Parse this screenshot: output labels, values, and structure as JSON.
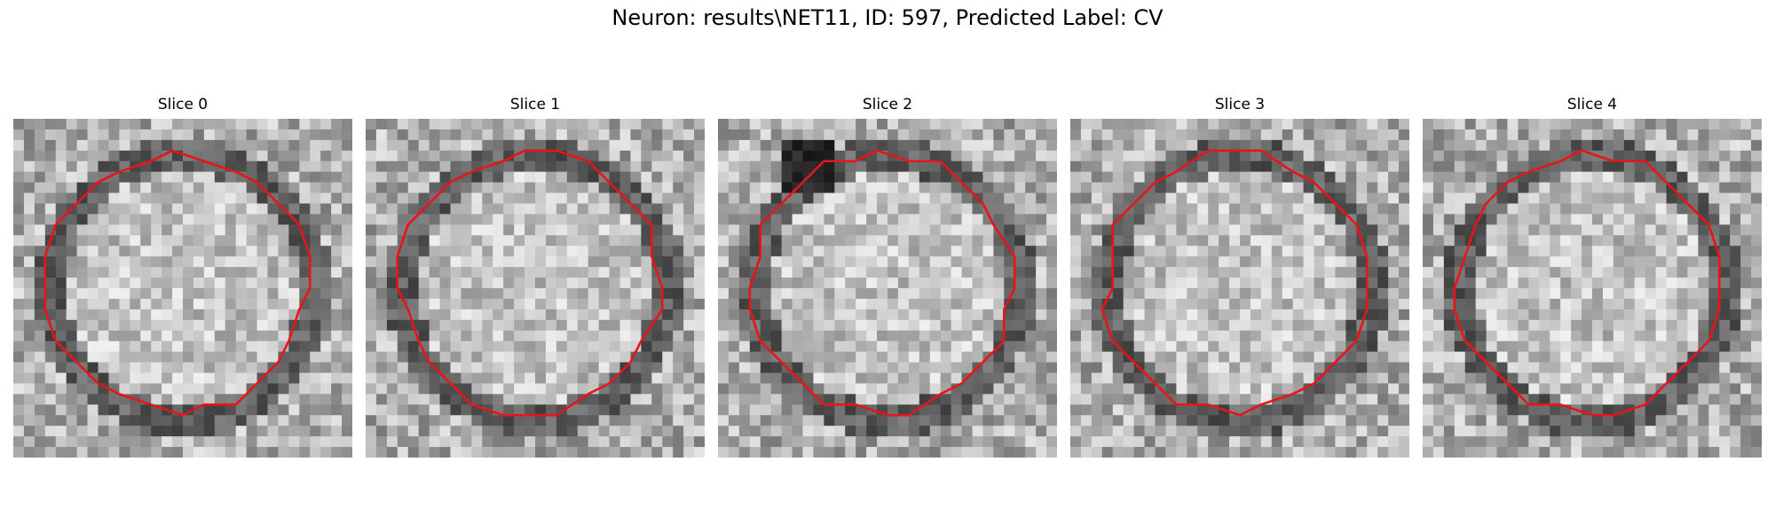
{
  "figure": {
    "title": "Neuron: results\\NET11, ID: 597, Predicted Label: CV"
  },
  "overlay_color": "#e8141a",
  "panels": [
    {
      "title": "Slice 0",
      "seed": 11,
      "ring": "dark",
      "cut_bottom": false
    },
    {
      "title": "Slice 1",
      "seed": 23,
      "ring": "dark",
      "cut_bottom": false
    },
    {
      "title": "Slice 2",
      "seed": 37,
      "ring": "dark-topblob",
      "cut_bottom": false
    },
    {
      "title": "Slice 3",
      "seed": 41,
      "ring": "dark",
      "cut_bottom": true
    },
    {
      "title": "Slice 4",
      "seed": 53,
      "ring": "dark",
      "cut_bottom": false
    }
  ]
}
